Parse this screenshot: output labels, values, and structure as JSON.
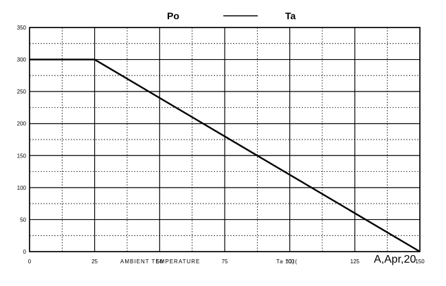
{
  "chart_data": {
    "type": "line",
    "title_left": "Po",
    "title_right": "Ta",
    "xlabel": "AMBIENT TEMPERATURE",
    "xunit": "Ta ℃)(",
    "xlim": [
      0,
      150
    ],
    "ylim": [
      0,
      350
    ],
    "x_ticks": [
      0,
      25,
      50,
      75,
      100,
      125,
      150
    ],
    "y_ticks": [
      0,
      50,
      100,
      150,
      200,
      250,
      300,
      350
    ],
    "grid": true,
    "series": [
      {
        "x": [
          0,
          25,
          150
        ],
        "y": [
          300,
          300,
          0
        ]
      }
    ]
  },
  "footer": {
    "revision": "A,Apr,20"
  },
  "colors": {
    "line": "#000000",
    "grid": "#000000",
    "background": "#ffffff"
  }
}
